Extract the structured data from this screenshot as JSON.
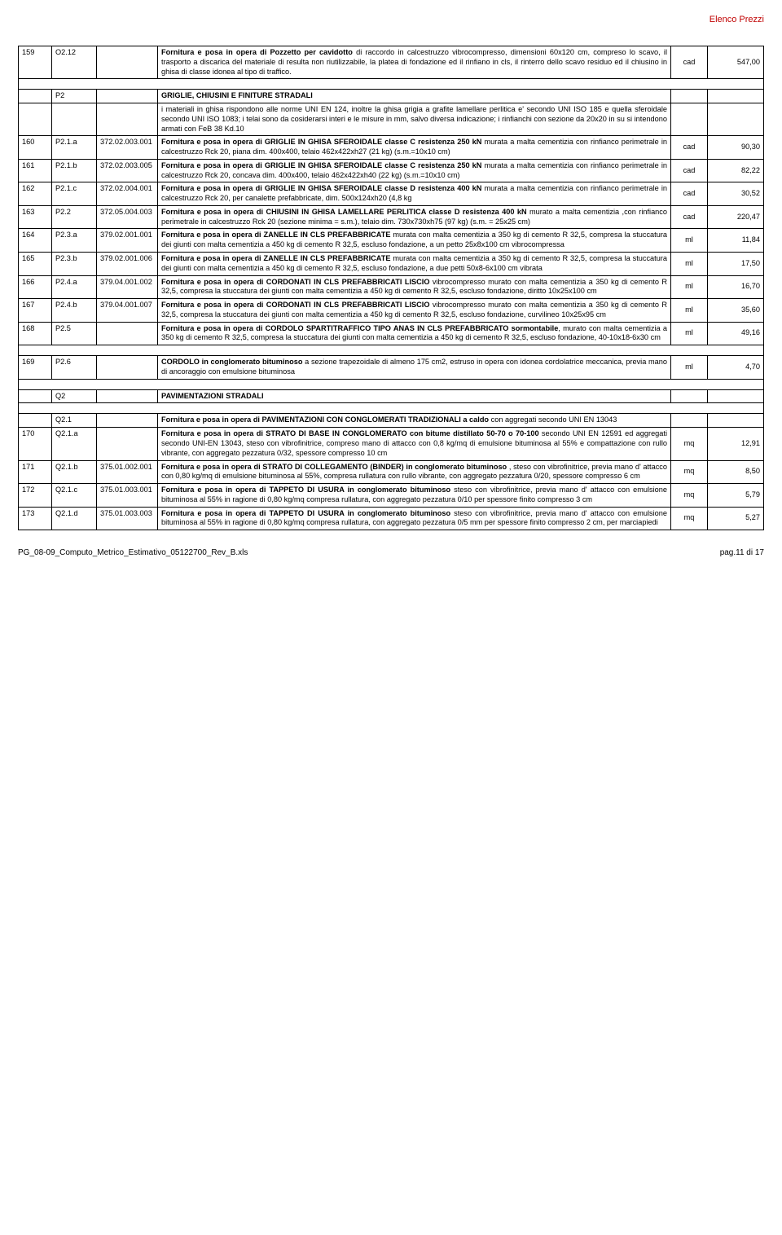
{
  "header": {
    "title": "Elenco Prezzi"
  },
  "rows": [
    {
      "n": "159",
      "code": "O2.12",
      "ref": "",
      "desc_html": "<span class='bold'>Fornitura e posa in opera di Pozzetto per cavidotto</span> di raccordo in calcestruzzo vibrocompresso, dimensioni 60x120 cm, compreso lo scavo, il trasporto a discarica del materiale di resulta non riutilizzabile, la platea di fondazione ed il rinfiano in cls, il rinterro dello scavo residuo ed il chiusino in ghisa di classe idonea al tipo di traffico.",
      "unit": "cad",
      "price": "547,00"
    },
    {
      "spacer": true
    },
    {
      "n": "",
      "code": "P2",
      "ref": "",
      "desc_html": "<span class='bold'>GRIGLIE, CHIUSINI E FINITURE STRADALI</span>",
      "unit": "",
      "price": "",
      "section": true
    },
    {
      "n": "",
      "code": "",
      "ref": "",
      "desc_html": "i materiali in ghisa rispondono alle norme UNI EN 124, inoltre la ghisa grigia a grafite lamellare perlitica e' secondo UNI ISO 185 e quella sferoidale secondo UNI ISO 1083; i telai sono da cosiderarsi interi e le misure in mm, salvo diversa indicazione; i rinfianchi con sezione da 20x20 in su si intendono armati con FeB 38 Kd.10",
      "unit": "",
      "price": ""
    },
    {
      "n": "160",
      "code": "P2.1.a",
      "ref": "372.02.003.001",
      "desc_html": "<span class='bold'>Fornitura e posa in opera di GRIGLIE IN GHISA SFEROIDALE classe C resistenza 250 kN</span> murata a malta cementizia con rinfianco perimetrale in calcestruzzo Rck 20, piana dim. 400x400, telaio 462x422xh27 (21 kg) (s.m.=10x10 cm)",
      "unit": "cad",
      "price": "90,30"
    },
    {
      "n": "161",
      "code": "P2.1.b",
      "ref": "372.02.003.005",
      "desc_html": "<span class='bold'>Fornitura e posa in opera di GRIGLIE IN GHISA SFEROIDALE classe C resistenza 250 kN</span> murata a malta cementizia con rinfianco perimetrale in calcestruzzo Rck 20, concava dim. 400x400, telaio 462x422xh40 (22 kg) (s.m.=10x10 cm)",
      "unit": "cad",
      "price": "82,22"
    },
    {
      "n": "162",
      "code": "P2.1.c",
      "ref": "372.02.004.001",
      "desc_html": "<span class='bold'>Fornitura e posa in opera di GRIGLIE IN GHISA SFEROIDALE classe D resistenza 400 kN</span> murata a malta cementizia con rinfianco perimetrale in calcestruzzo Rck 20, per canalette prefabbricate, dim. 500x124xh20 (4,8 kg",
      "unit": "cad",
      "price": "30,52"
    },
    {
      "n": "163",
      "code": "P2.2",
      "ref": "372.05.004.003",
      "desc_html": "<span class='bold'>Fornitura e posa in opera di CHIUSINI IN GHISA LAMELLARE PERLITICA classe D resistenza 400 kN</span> murato a malta cementizia ,con rinfianco perimetrale in calcestruzzo Rck 20 (sezione minima = s.m.), telaio dim. 730x730xh75 (97 kg) (s.m. = 25x25 cm)",
      "unit": "cad",
      "price": "220,47"
    },
    {
      "n": "164",
      "code": "P2.3.a",
      "ref": "379.02.001.001",
      "desc_html": "<span class='bold'>Fornitura e posa in opera di ZANELLE IN CLS PREFABBRICATE</span> murata con malta cementizia a 350 kg di cemento R 32,5, compresa la stuccatura dei giunti con malta cementizia a 450 kg di cemento R 32,5, escluso fondazione, a un petto 25x8x100 cm vibrocompressa",
      "unit": "ml",
      "price": "11,84"
    },
    {
      "n": "165",
      "code": "P2.3.b",
      "ref": "379.02.001.006",
      "desc_html": "<span class='bold'>Fornitura e posa in opera di ZANELLE IN CLS PREFABBRICATE</span> murata con malta cementizia a 350 kg di cemento R 32,5, compresa la stuccatura dei giunti con malta cementizia a 450 kg di cemento R 32,5, escluso fondazione, a due petti 50x8-6x100 cm vibrata",
      "unit": "ml",
      "price": "17,50"
    },
    {
      "n": "166",
      "code": "P2.4.a",
      "ref": "379.04.001.002",
      "desc_html": "<span class='bold'>Fornitura e posa in opera di CORDONATI IN CLS PREFABBRICATI LISCIO</span> vibrocompresso murato con malta cementizia a 350 kg di cemento R 32,5, compresa la stuccatura dei giunti con malta cementizia a 450 kg di cemento R 32,5, escluso fondazione, diritto 10x25x100 cm",
      "unit": "ml",
      "price": "16,70"
    },
    {
      "n": "167",
      "code": "P2.4.b",
      "ref": "379.04.001.007",
      "desc_html": "<span class='bold'>Fornitura e posa in opera di CORDONATI IN CLS PREFABBRICATI LISCIO</span> vibrocompresso murato con malta cementizia a 350 kg di cemento R 32,5, compresa la stuccatura dei giunti con malta cementizia a 450 kg di cemento R 32,5, escluso fondazione, curvilineo 10x25x95 cm",
      "unit": "ml",
      "price": "35,60"
    },
    {
      "n": "168",
      "code": "P2.5",
      "ref": "",
      "desc_html": "<span class='bold'>Fornitura e posa in opera di CORDOLO SPARTITRAFFICO TIPO ANAS IN CLS PREFABBRICATO sormontabile</span>, murato con malta cementizia a 350 kg di cemento R 32,5, compresa la stuccatura dei giunti con malta cementizia a 450 kg di cemento R 32,5, escluso fondazione, 40-10x18-6x30 cm",
      "unit": "ml",
      "price": "49,16"
    },
    {
      "spacer": true
    },
    {
      "n": "169",
      "code": "P2.6",
      "ref": "",
      "desc_html": "<span class='bold'>CORDOLO in conglomerato bituminoso</span> a sezione trapezoidale di almeno 175 cm2, estruso in opera con idonea cordolatrice meccanica, previa mano di ancoraggio con emulsione bituminosa",
      "unit": "ml",
      "price": "4,70"
    },
    {
      "spacer": true
    },
    {
      "n": "",
      "code": "Q2",
      "ref": "",
      "desc_html": "<span class='bold'>PAVIMENTAZIONI STRADALI</span>",
      "unit": "",
      "price": "",
      "section": true
    },
    {
      "spacer": true
    },
    {
      "n": "",
      "code": "Q2.1",
      "ref": "",
      "desc_html": "<span class='bold'>Fornitura e posa in opera di PAVIMENTAZIONI CON CONGLOMERATI TRADIZIONALI a caldo</span> con aggregati secondo UNI EN 13043",
      "unit": "",
      "price": ""
    },
    {
      "n": "170",
      "code": "Q2.1.a",
      "ref": "",
      "desc_html": "<span class='bold'>Fornitura e posa in opera di STRATO DI BASE IN CONGLOMERATO con bitume distillato 50-70 o 70-100</span> secondo UNI EN 12591 ed aggregati secondo UNI-EN 13043, steso con vibrofinitrice, compreso mano di attacco con 0,8 kg/mq di emulsione bituminosa al 55% e compattazione con rullo vibrante, con aggregato pezzatura 0/32, spessore compresso 10 cm",
      "unit": "mq",
      "price": "12,91"
    },
    {
      "n": "171",
      "code": "Q2.1.b",
      "ref": "375.01.002.001",
      "desc_html": "<span class='bold'>Fornitura e posa in opera di STRATO DI COLLEGAMENTO (BINDER) in conglomerato bituminoso</span> , steso con vibrofinitrice, previa mano d' attacco con 0,80 kg/mq di emulsione bituminosa al 55%, compresa rullatura con rullo vibrante, con aggregato pezzatura 0/20, spessore compresso 6 cm",
      "unit": "mq",
      "price": "8,50"
    },
    {
      "n": "172",
      "code": "Q2.1.c",
      "ref": "375.01.003.001",
      "desc_html": "<span class='bold'>Fornitura e posa in opera di TAPPETO DI USURA in conglomerato bituminoso</span> steso con vibrofinitrice, previa mano d' attacco con emulsione bituminosa al 55% in ragione di 0,80 kg/mq compresa rullatura, con aggregato pezzatura 0/10 per spessore finito compresso 3 cm",
      "unit": "mq",
      "price": "5,79"
    },
    {
      "n": "173",
      "code": "Q2.1.d",
      "ref": "375.01.003.003",
      "desc_html": "<span class='bold'>Fornitura e posa in opera di TAPPETO DI USURA in conglomerato bituminoso</span> steso con vibrofinitrice, previa mano d' attacco con emulsione bituminosa al 55% in ragione di 0,80 kg/mq compresa rullatura, con aggregato pezzatura 0/5 mm per spessore finito compresso 2 cm, per marciapiedi",
      "unit": "mq",
      "price": "5,27"
    }
  ],
  "footer": {
    "left": "PG_08-09_Computo_Metrico_Estimativo_05122700_Rev_B.xls",
    "right": "pag.11 di 17"
  }
}
